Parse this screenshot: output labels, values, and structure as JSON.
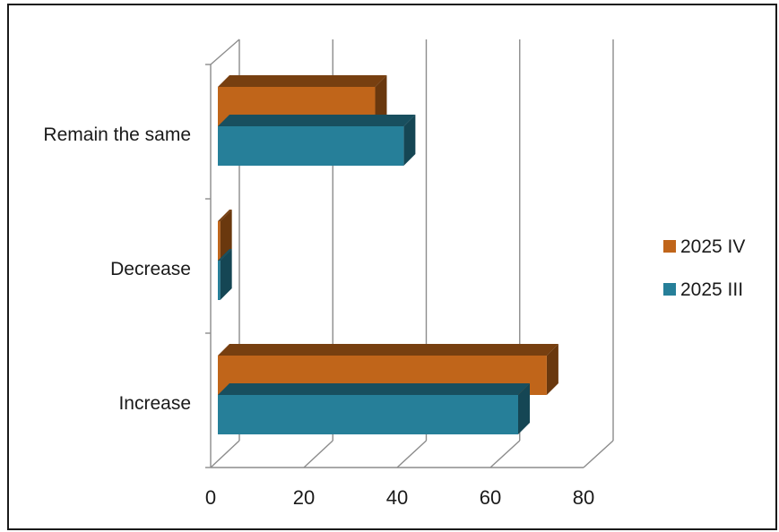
{
  "chart_data": {
    "type": "bar",
    "orientation": "horizontal",
    "style": "3d-clustered",
    "categories": [
      "Increase",
      "Decrease",
      "Remain the same"
    ],
    "series": [
      {
        "name": "2025 IV",
        "values": [
          69,
          0.5,
          33
        ],
        "color": "#c0651a"
      },
      {
        "name": "2025 III",
        "values": [
          63,
          0.5,
          39
        ],
        "color": "#267f99"
      }
    ],
    "xlim": [
      0,
      80
    ],
    "xticks": [
      "0",
      "20",
      "40",
      "60",
      "80"
    ],
    "grid": true,
    "legend_position": "right",
    "title": "",
    "xlabel": "",
    "ylabel": ""
  }
}
